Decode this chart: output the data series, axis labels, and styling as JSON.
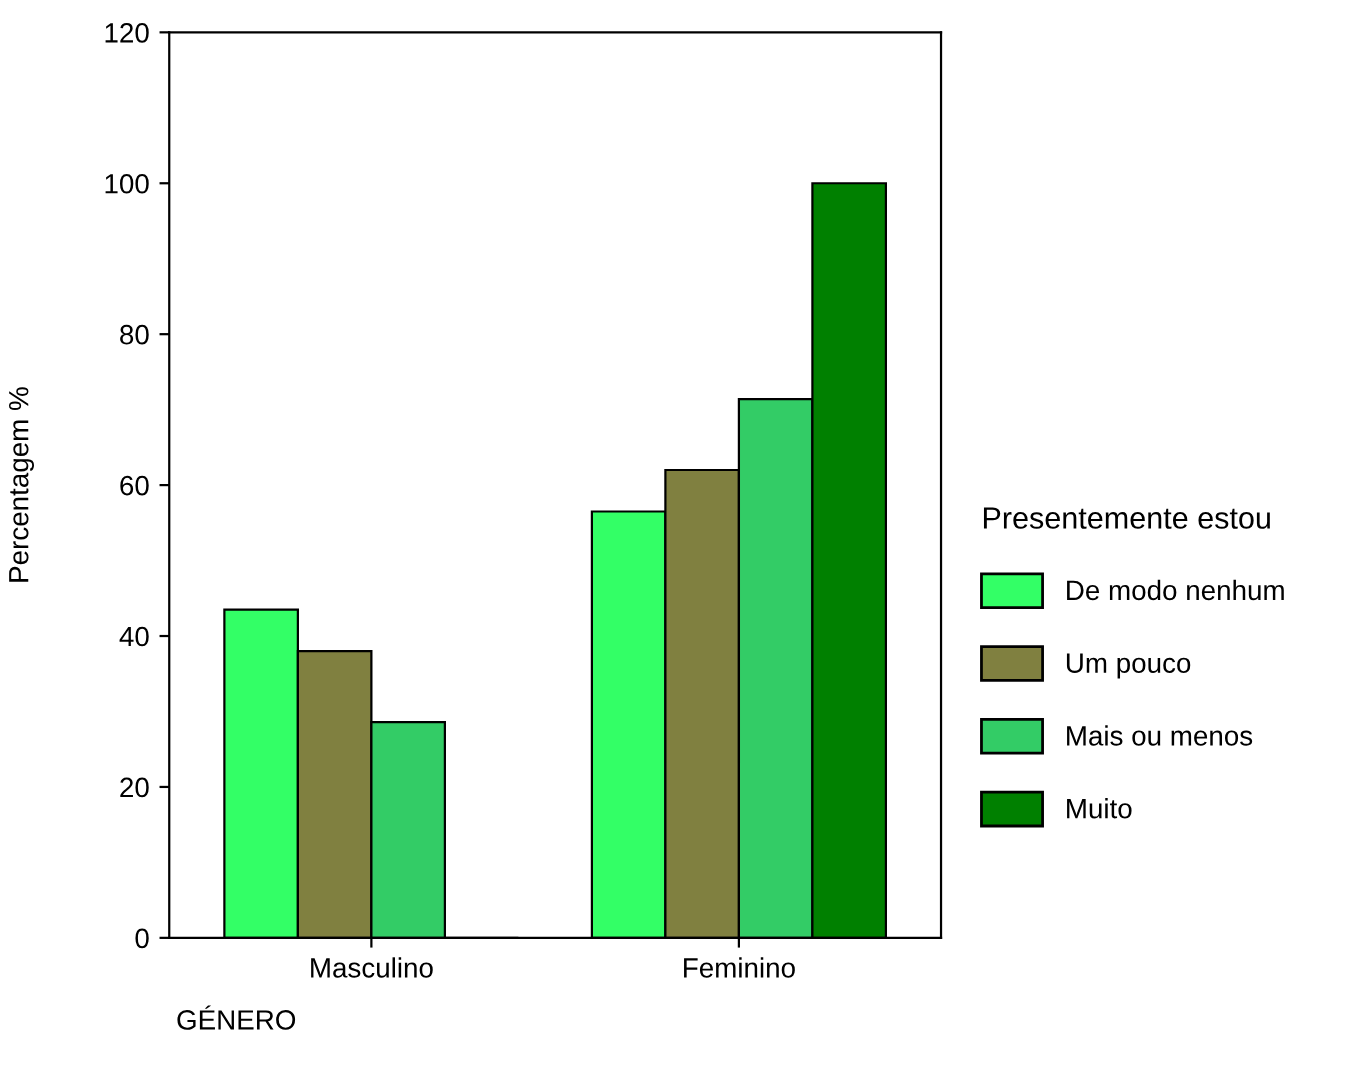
{
  "chart_data": {
    "type": "bar",
    "xlabel": "GÉNERO",
    "ylabel": "Percentagem %",
    "legend_title": "Presentemente estou",
    "categories": [
      "Masculino",
      "Feminino"
    ],
    "series": [
      {
        "name": "De modo nenhum",
        "color": "#33ff66",
        "values": [
          43.5,
          56.5
        ]
      },
      {
        "name": "Um pouco",
        "color": "#808040",
        "values": [
          38,
          62
        ]
      },
      {
        "name": "Mais ou menos",
        "color": "#33cc66",
        "values": [
          28.6,
          71.4
        ]
      },
      {
        "name": "Muito",
        "color": "#008000",
        "values": [
          0,
          100
        ]
      }
    ],
    "ylim": [
      0,
      120
    ],
    "yticks": [
      0,
      20,
      40,
      60,
      80,
      100,
      120
    ],
    "grid": false,
    "legend": "right"
  }
}
